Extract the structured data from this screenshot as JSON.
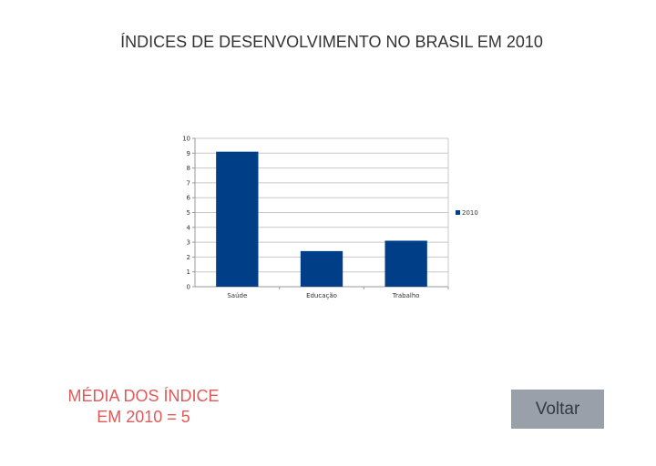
{
  "header": {
    "title": "ÍNDICES DE DESENVOLVIMENTO NO BRASIL EM 2010"
  },
  "chart_data": {
    "type": "bar",
    "categories": [
      "Saúde",
      "Educação",
      "Trabalho"
    ],
    "series": [
      {
        "name": "2010",
        "values": [
          9.1,
          2.4,
          3.1
        ],
        "color": "#003f87"
      }
    ],
    "ylim": [
      0,
      10
    ],
    "yticks": [
      0,
      1,
      2,
      3,
      4,
      5,
      6,
      7,
      8,
      9,
      10
    ],
    "grid": true,
    "legend": "right"
  },
  "summary": {
    "line1": "MÉDIA DOS ÍNDICE",
    "line2": "EM 2010 = 5"
  },
  "actions": {
    "back_label": "Voltar"
  }
}
